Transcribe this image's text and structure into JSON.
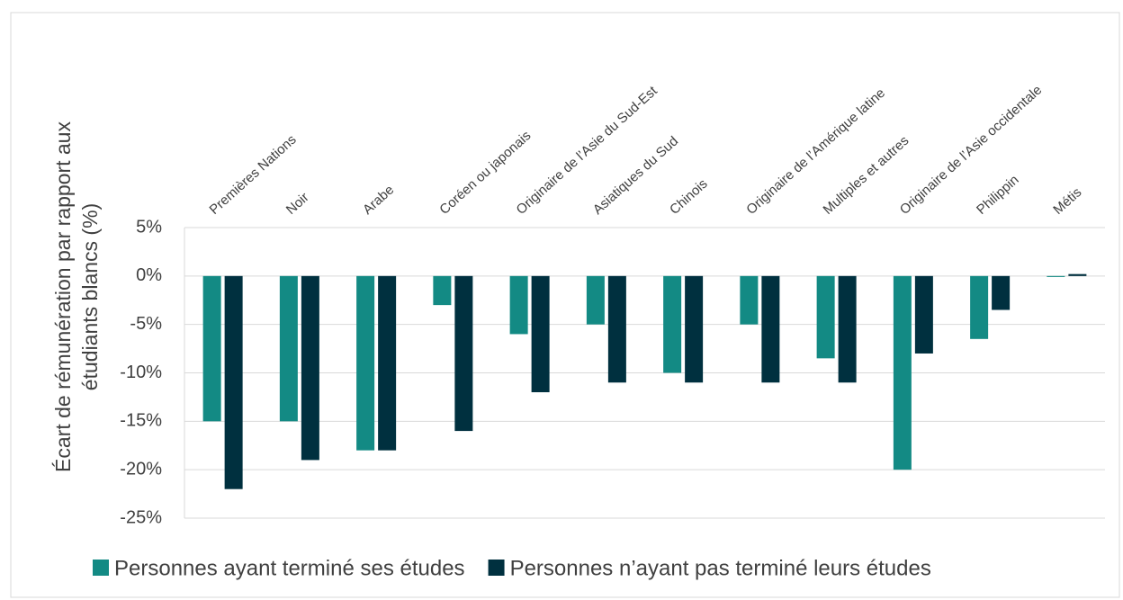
{
  "chart_data": {
    "type": "bar",
    "y_label": [
      "Écart de rémunération par rapport aux",
      "étudiants blancs (%)"
    ],
    "categories": [
      "Premières Nations",
      "Noir",
      "Arabe",
      "Coréen ou japonais",
      "Originaire de l’Asie du Sud-Est",
      "Asiatiques du Sud",
      "Chinois",
      "Originaire de l’Amérique latine",
      "Multiples et autres",
      "Originaire de l’Asie occidentale",
      "Philippin",
      "Métis"
    ],
    "series": [
      {
        "name": "Personnes ayant terminé ses études",
        "color": "#138a84",
        "values": [
          -15,
          -15,
          -18,
          -3,
          -6,
          -5,
          -10,
          -5,
          -8.5,
          -20,
          -6.5,
          -0.1
        ]
      },
      {
        "name": "Personnes n’ayant pas terminé leurs études",
        "color": "#00303f",
        "values": [
          -22,
          -19,
          -18,
          -16,
          -12,
          -11,
          -11,
          -11,
          -11,
          -8,
          -3.5,
          0.2
        ]
      }
    ],
    "ylim": [
      -25,
      5
    ],
    "yticks": [
      {
        "value": -25,
        "label": "-25%"
      },
      {
        "value": -20,
        "label": "-20%"
      },
      {
        "value": -15,
        "label": "-15%"
      },
      {
        "value": -10,
        "label": "-10%"
      },
      {
        "value": -5,
        "label": "-5%"
      },
      {
        "value": 0,
        "label": "0%"
      },
      {
        "value": 5,
        "label": "5%"
      }
    ],
    "grid": true,
    "legend": "bottom"
  }
}
